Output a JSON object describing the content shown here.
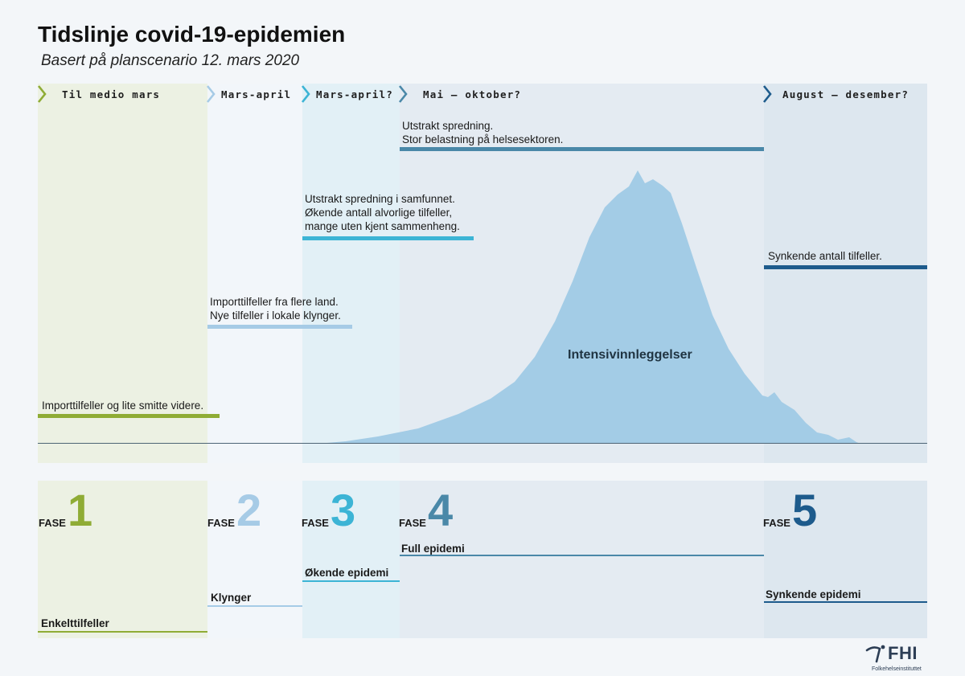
{
  "title": "Tidslinje covid-19-epidemien",
  "subtitle": "Basert på planscenario 12. mars 2020",
  "periods": [
    {
      "label": "Til medio mars",
      "color": "#8fac35"
    },
    {
      "label": "Mars-april",
      "color": "#a6cbe6"
    },
    {
      "label": "Mars-april?",
      "color": "#3cb4d5"
    },
    {
      "label": "Mai – oktober?",
      "color": "#4a88a8"
    },
    {
      "label": "August – desember?",
      "color": "#1d5b8c"
    }
  ],
  "annotations": [
    {
      "lines": [
        "Importtilfeller og lite smitte videre."
      ],
      "color": "#8fac35"
    },
    {
      "lines": [
        "Importtilfeller fra flere land.",
        "Nye tilfeller i lokale klynger."
      ],
      "color": "#a6cbe6"
    },
    {
      "lines": [
        "Utstrakt spredning i samfunnet.",
        "Økende antall alvorlige tilfeller,",
        "mange uten kjent sammenheng."
      ],
      "color": "#3cb4d5"
    },
    {
      "lines": [
        "Utstrakt spredning.",
        "Stor belastning på helsesektoren."
      ],
      "color": "#4a88a8"
    },
    {
      "lines": [
        "Synkende antall tilfeller."
      ],
      "color": "#1d5b8c"
    }
  ],
  "curve": {
    "label": "Intensivinnleggelser",
    "color": "#a3cce6"
  },
  "phases": [
    {
      "word": "FASE",
      "number": "1",
      "name": "Enkelttilfeller",
      "color": "#8fac35"
    },
    {
      "word": "FASE",
      "number": "2",
      "name": "Klynger",
      "color": "#a6cbe6"
    },
    {
      "word": "FASE",
      "number": "3",
      "name": "Økende epidemi",
      "color": "#3cb4d5"
    },
    {
      "word": "FASE",
      "number": "4",
      "name": "Full epidemi",
      "color": "#4a88a8"
    },
    {
      "word": "FASE",
      "number": "5",
      "name": "Synkende epidemi",
      "color": "#1d5b8c"
    }
  ],
  "logo": {
    "name": "FHI",
    "subtext": "Folkehelseinstituttet",
    "color": "#2d3e55"
  }
}
